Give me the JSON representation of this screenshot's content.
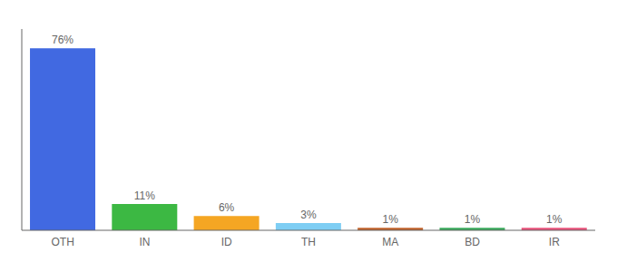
{
  "chart_data": {
    "type": "bar",
    "categories": [
      "OTH",
      "IN",
      "ID",
      "TH",
      "MA",
      "BD",
      "IR"
    ],
    "values": [
      76,
      11,
      6,
      3,
      1,
      1,
      1
    ],
    "value_labels": [
      "76%",
      "11%",
      "6%",
      "3%",
      "1%",
      "1%",
      "1%"
    ],
    "colors": [
      "#4169e1",
      "#3cb843",
      "#f5a623",
      "#7ecef4",
      "#c0622b",
      "#3aaa5c",
      "#e8527a"
    ],
    "ylim": [
      0,
      84
    ],
    "grid": false,
    "data_labels": true,
    "tick_labels": "x"
  }
}
